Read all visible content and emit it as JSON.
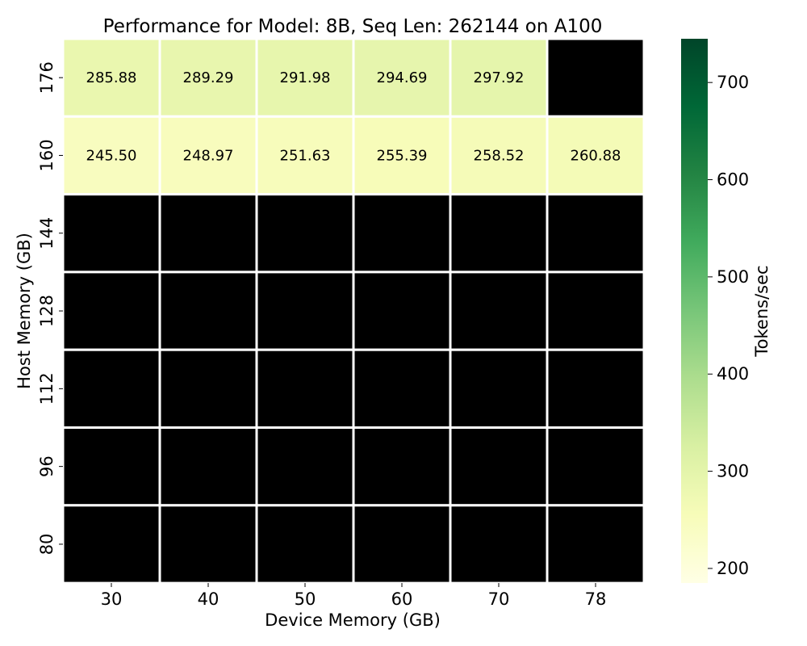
{
  "chart_data": {
    "type": "heatmap",
    "title": "Performance for Model: 8B, Seq Len: 262144 on A100",
    "xlabel": "Device Memory (GB)",
    "ylabel": "Host Memory (GB)",
    "x_categories": [
      "30",
      "40",
      "50",
      "60",
      "70",
      "78"
    ],
    "y_categories": [
      "176",
      "160",
      "144",
      "128",
      "112",
      "96",
      "80"
    ],
    "values": [
      [
        285.88,
        289.29,
        291.98,
        294.69,
        297.92,
        null
      ],
      [
        245.5,
        248.97,
        251.63,
        255.39,
        258.52,
        260.88
      ],
      [
        null,
        null,
        null,
        null,
        null,
        null
      ],
      [
        null,
        null,
        null,
        null,
        null,
        null
      ],
      [
        null,
        null,
        null,
        null,
        null,
        null
      ],
      [
        null,
        null,
        null,
        null,
        null,
        null
      ],
      [
        null,
        null,
        null,
        null,
        null,
        null
      ]
    ],
    "missing_color": "#000000",
    "colorbar": {
      "label": "Tokens/sec",
      "min": 185,
      "max": 745,
      "ticks": [
        200,
        300,
        400,
        500,
        600,
        700
      ],
      "colormap": "YlGn"
    }
  }
}
